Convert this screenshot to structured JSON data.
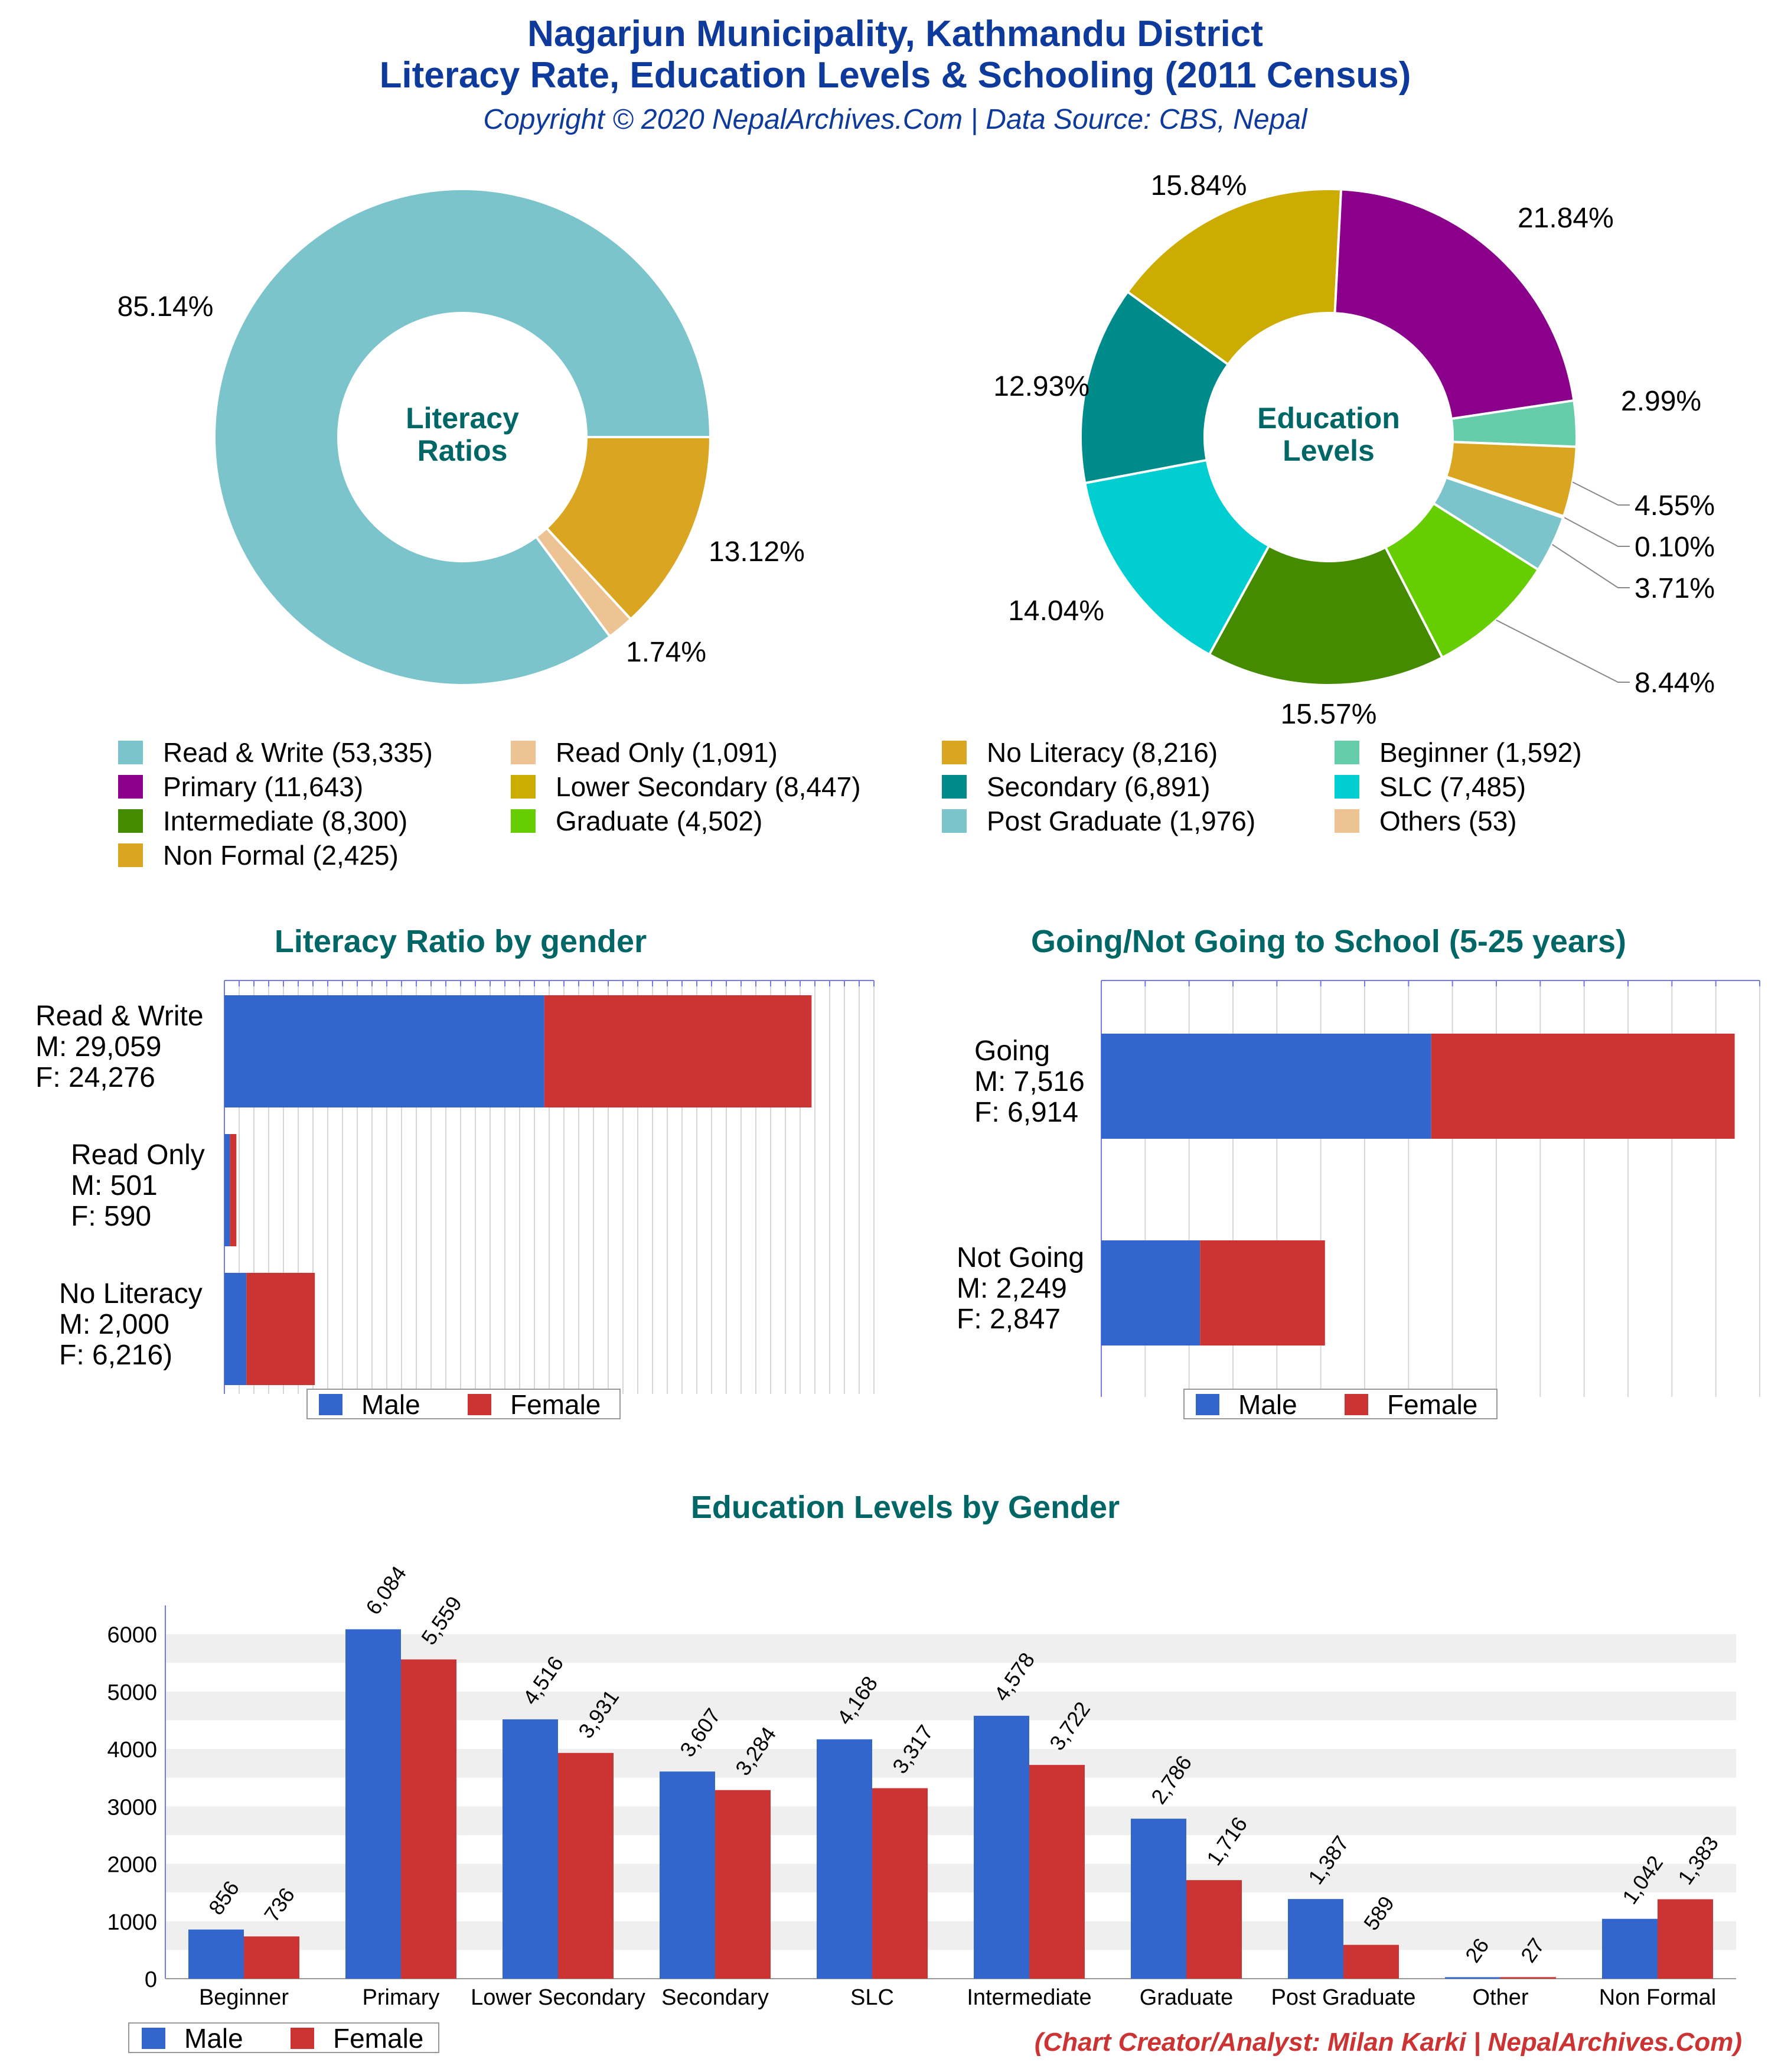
{
  "header": {
    "title_line1": "Nagarjun Municipality, Kathmandu District",
    "title_line2": "Literacy Rate, Education Levels & Schooling (2011 Census)",
    "copyright": "Copyright © 2020 NepalArchives.Com | Data Source: CBS, Nepal"
  },
  "footer": {
    "credit": "(Chart Creator/Analyst: Milan Karki | NepalArchives.Com)"
  },
  "colors": {
    "title": "#0e3a9c",
    "subtitle_teal": "#006666",
    "male": "#3366cc",
    "female": "#cc3333",
    "credit": "#cc3333"
  },
  "legend": {
    "items": [
      {
        "label": "Read & Write (53,335)",
        "color": "#7cc4cc"
      },
      {
        "label": "Read Only (1,091)",
        "color": "#eec394"
      },
      {
        "label": "No Literacy (8,216)",
        "color": "#daa520"
      },
      {
        "label": "Beginner (1,592)",
        "color": "#66cdaa"
      },
      {
        "label": "Primary (11,643)",
        "color": "#8b008b"
      },
      {
        "label": "Lower Secondary (8,447)",
        "color": "#ccac00"
      },
      {
        "label": "Secondary (6,891)",
        "color": "#008b8b"
      },
      {
        "label": "SLC (7,485)",
        "color": "#00ced1"
      },
      {
        "label": "Intermediate (8,300)",
        "color": "#458b00"
      },
      {
        "label": "Graduate (4,502)",
        "color": "#66cd00"
      },
      {
        "label": "Post Graduate (1,976)",
        "color": "#7cc4cc"
      },
      {
        "label": "Others (53)",
        "color": "#eec394"
      },
      {
        "label": "Non Formal (2,425)",
        "color": "#daa520"
      }
    ]
  },
  "chart_data": [
    {
      "type": "pie",
      "title": "Literacy Ratios",
      "labels": [
        "Read & Write",
        "Read Only",
        "No Literacy"
      ],
      "values": [
        53335,
        1091,
        8216
      ],
      "percent_labels": [
        "85.14%",
        "1.74%",
        "13.12%"
      ],
      "colors": [
        "#7cc4cc",
        "#eec394",
        "#daa520"
      ]
    },
    {
      "type": "pie",
      "title": "Education Levels",
      "labels": [
        "Beginner",
        "Non Formal",
        "Others",
        "Post Graduate",
        "Graduate",
        "Intermediate",
        "SLC",
        "Secondary",
        "Lower Secondary",
        "Primary"
      ],
      "values": [
        1592,
        2425,
        53,
        1976,
        4502,
        8300,
        7485,
        6891,
        8447,
        11643
      ],
      "percent_labels": [
        "2.99%",
        "4.55%",
        "0.10%",
        "3.71%",
        "8.44%",
        "15.57%",
        "14.04%",
        "12.93%",
        "15.84%",
        "21.84%"
      ],
      "colors": [
        "#66cdaa",
        "#daa520",
        "#eec394",
        "#7cc4cc",
        "#66cd00",
        "#458b00",
        "#00ced1",
        "#008b8b",
        "#ccac00",
        "#8b008b"
      ]
    },
    {
      "type": "bar",
      "orientation": "horizontal",
      "stacked": true,
      "title": "Literacy Ratio by gender",
      "categories": [
        "Read & Write",
        "Read Only",
        "No Literacy"
      ],
      "category_labels": [
        [
          "Read & Write",
          "M: 29,059",
          "F: 24,276"
        ],
        [
          "Read Only",
          "M: 501",
          "F: 590"
        ],
        [
          "No Literacy",
          "M: 2,000",
          "F: 6,216)"
        ]
      ],
      "series": [
        {
          "name": "Male",
          "values": [
            29059,
            501,
            2000
          ]
        },
        {
          "name": "Female",
          "values": [
            24276,
            590,
            6216
          ]
        }
      ],
      "legend": [
        "Male",
        "Female"
      ]
    },
    {
      "type": "bar",
      "orientation": "horizontal",
      "stacked": true,
      "title": "Going/Not Going to School (5-25 years)",
      "categories": [
        "Going",
        "Not Going"
      ],
      "category_labels": [
        [
          "Going",
          "M: 7,516",
          "F: 6,914"
        ],
        [
          "Not Going",
          "M: 2,249",
          "F: 2,847"
        ]
      ],
      "series": [
        {
          "name": "Male",
          "values": [
            7516,
            2249
          ]
        },
        {
          "name": "Female",
          "values": [
            6914,
            2847
          ]
        }
      ],
      "legend": [
        "Male",
        "Female"
      ]
    },
    {
      "type": "bar",
      "title": "Education Levels by Gender",
      "categories": [
        "Beginner",
        "Primary",
        "Lower Secondary",
        "Secondary",
        "SLC",
        "Intermediate",
        "Graduate",
        "Post Graduate",
        "Other",
        "Non Formal"
      ],
      "series": [
        {
          "name": "Male",
          "values": [
            856,
            6084,
            4516,
            3607,
            4168,
            4578,
            2786,
            1387,
            26,
            1042
          ]
        },
        {
          "name": "Female",
          "values": [
            736,
            5559,
            3931,
            3284,
            3317,
            3722,
            1716,
            589,
            27,
            1383
          ]
        }
      ],
      "value_labels": {
        "Male": [
          "856",
          "6,084",
          "4,516",
          "3,607",
          "4,168",
          "4,578",
          "2,786",
          "1,387",
          "26",
          "1,042"
        ],
        "Female": [
          "736",
          "5,559",
          "3,931",
          "3,284",
          "3,317",
          "3,722",
          "1,716",
          "589",
          "27",
          "1,383"
        ]
      },
      "yticks": [
        "0",
        "1000",
        "2000",
        "3000",
        "4000",
        "5000",
        "6000"
      ],
      "ylim": [
        0,
        6500
      ],
      "legend": [
        "Male",
        "Female"
      ]
    }
  ]
}
